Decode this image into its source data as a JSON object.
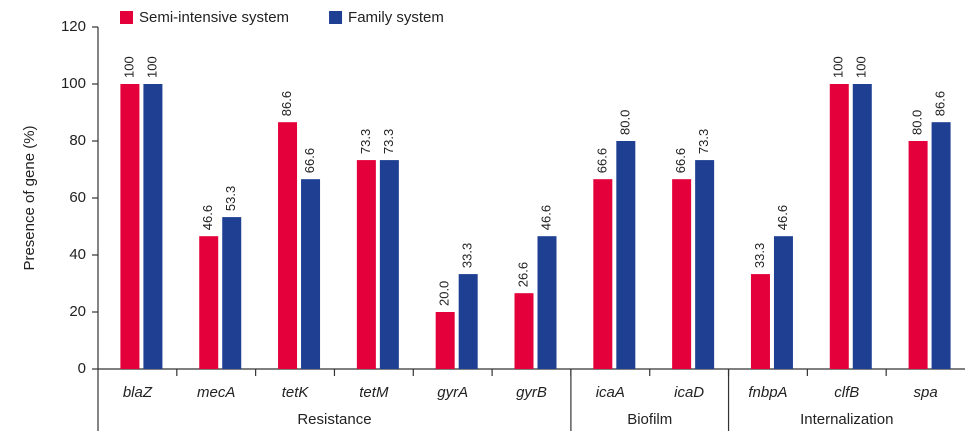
{
  "chart_data": {
    "type": "bar",
    "y_label": "Presence of gene (%)",
    "categories": [
      "blaZ",
      "mecA",
      "tetK",
      "tetM",
      "gyrA",
      "gyrB",
      "icaA",
      "icaD",
      "fnbpA",
      "clfB",
      "spa"
    ],
    "groups": [
      {
        "name": "Resistance",
        "span": 6
      },
      {
        "name": "Biofilm",
        "span": 2
      },
      {
        "name": "Internalization",
        "span": 3
      }
    ],
    "series": [
      {
        "name": "Semi-intensive system",
        "color": "#e4003a",
        "values": [
          100,
          46.6,
          86.6,
          73.3,
          20.0,
          26.6,
          66.6,
          66.6,
          33.3,
          100,
          80.0
        ],
        "value_labels": [
          "100",
          "46.6",
          "86.6",
          "73.3",
          "20.0",
          "26.6",
          "66.6",
          "66.6",
          "33.3",
          "100",
          "80.0"
        ]
      },
      {
        "name": "Family system",
        "color": "#1f3f93",
        "values": [
          100,
          53.3,
          66.6,
          73.3,
          33.3,
          46.6,
          80.0,
          73.3,
          46.6,
          100,
          86.6
        ],
        "value_labels": [
          "100",
          "53.3",
          "66.6",
          "73.3",
          "33.3",
          "46.6",
          "80.0",
          "73.3",
          "46.6",
          "100",
          "86.6"
        ]
      }
    ],
    "ylim": [
      0,
      120
    ],
    "yticks": [
      0,
      20,
      40,
      60,
      80,
      100,
      120
    ],
    "legend": "top-left"
  }
}
